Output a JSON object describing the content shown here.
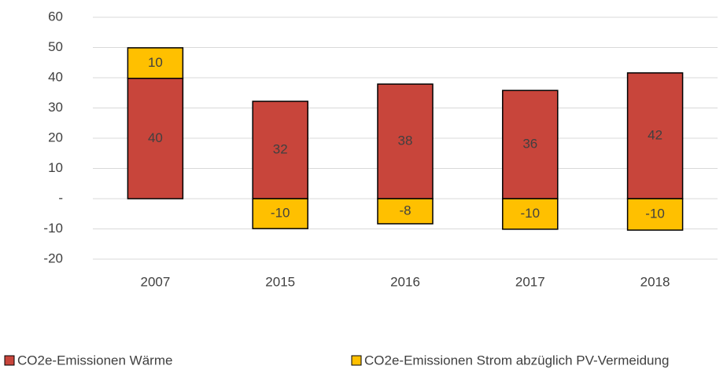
{
  "chart_data": {
    "type": "stacked_bar",
    "categories": [
      "2007",
      "2015",
      "2016",
      "2017",
      "2018"
    ],
    "series": [
      {
        "name": "CO2e-Emissionen Wärme",
        "color": "#c8453b",
        "values": [
          39.8,
          32.2,
          37.9,
          35.8,
          41.6
        ],
        "value_labels": [
          "40",
          "32",
          "38",
          "36",
          "42"
        ]
      },
      {
        "name": "CO2e-Emissionen Strom abzüglich PV-Vermeidung",
        "color": "#ffc000",
        "values": [
          10.1,
          -9.9,
          -8.3,
          -10.1,
          -10.4
        ],
        "value_labels": [
          "10",
          "-10",
          "-8",
          "-10",
          "-10"
        ]
      }
    ],
    "ylim": [
      -20,
      60
    ],
    "yticks": [
      -20,
      -10,
      {
        "value": 0,
        "label": "-"
      },
      10,
      20,
      30,
      40,
      50,
      60
    ],
    "grid": true,
    "legend": "bottom"
  }
}
